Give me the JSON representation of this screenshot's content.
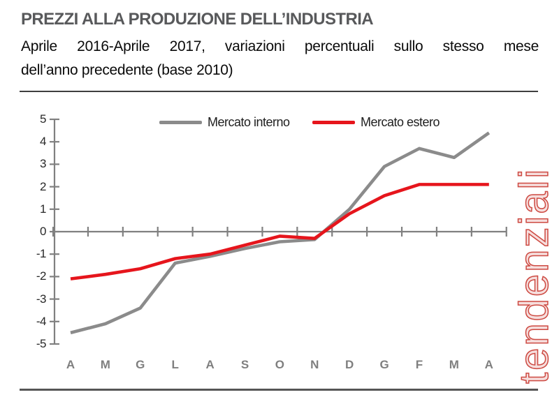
{
  "header": {
    "title": "PREZZI ALLA PRODUZIONE DELL’INDUSTRIA",
    "subtitle_line1": "Aprile 2016-Aprile 2017, variazioni percentuali sullo stesso mese",
    "subtitle_line2": "dell’anno precedente (base 2010)"
  },
  "watermark": {
    "text": "tendenziali",
    "color": "#cd4a42"
  },
  "chart_data": {
    "type": "line",
    "title": "Prezzi alla produzione dell'industria, variazioni % tendenziali",
    "categories": [
      "A",
      "M",
      "G",
      "L",
      "A",
      "S",
      "O",
      "N",
      "D",
      "G",
      "F",
      "M",
      "A"
    ],
    "categories_meaning": "Aprile 2016 - Aprile 2017 (mesi)",
    "series": [
      {
        "name": "Mercato interno",
        "color": "#8b8b8b",
        "values": [
          -4.5,
          -4.1,
          -3.4,
          -1.4,
          -1.1,
          -0.75,
          -0.45,
          -0.35,
          1.0,
          2.9,
          3.7,
          3.3,
          4.4
        ]
      },
      {
        "name": "Mercato estero",
        "color": "#e6151c",
        "values": [
          -2.1,
          -1.9,
          -1.65,
          -1.2,
          -1.0,
          -0.6,
          -0.2,
          -0.3,
          0.8,
          1.6,
          2.1,
          2.1,
          2.1
        ]
      }
    ],
    "xlabel": "",
    "ylabel": "",
    "ylim": [
      -5,
      5
    ],
    "yticks": [
      5,
      4,
      3,
      2,
      1,
      0,
      -1,
      -2,
      -3,
      -4,
      -5
    ],
    "grid": false,
    "legend_position": "top",
    "axis_color": "#808080"
  }
}
